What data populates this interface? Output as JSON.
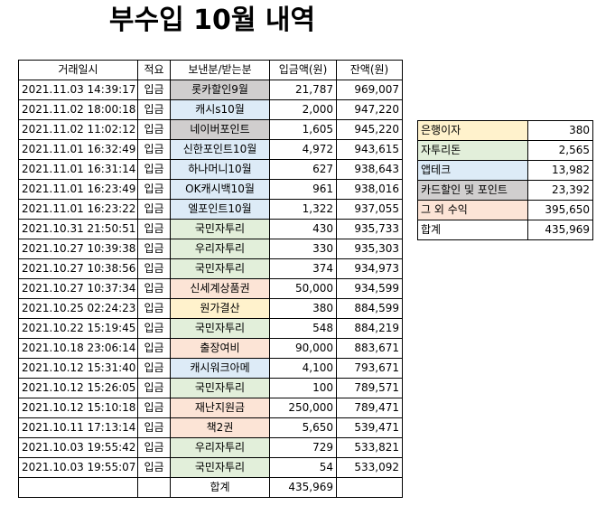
{
  "header": {
    "title": "부수입 10월 내역"
  },
  "table": {
    "columns": [
      "거래일시",
      "적요",
      "보낸분/받는분",
      "입금액(원)",
      "잔액(원)"
    ],
    "rows": [
      {
        "cells": [
          "2021.11.03 14:39:17",
          "입금",
          "롯카할인9월",
          "21,787",
          "969,007"
        ],
        "color": "#d0cece"
      },
      {
        "cells": [
          "2021.11.02 18:00:18",
          "입금",
          "캐시s10월",
          "2,000",
          "947,220"
        ],
        "color": "#ddebf7"
      },
      {
        "cells": [
          "2021.11.02 11:02:12",
          "입금",
          "네이버포인트",
          "1,605",
          "945,220"
        ],
        "color": "#d0cece"
      },
      {
        "cells": [
          "2021.11.01 16:32:49",
          "입금",
          "신한포인트10월",
          "4,972",
          "943,615"
        ],
        "color": "#ddebf7"
      },
      {
        "cells": [
          "2021.11.01 16:31:14",
          "입금",
          "하나머니10월",
          "627",
          "938,643"
        ],
        "color": "#ddebf7"
      },
      {
        "cells": [
          "2021.11.01 16:23:49",
          "입금",
          "OK캐시백10월",
          "961",
          "938,016"
        ],
        "color": "#ddebf7"
      },
      {
        "cells": [
          "2021.11.01 16:23:22",
          "입금",
          "엘포인트10월",
          "1,322",
          "937,055"
        ],
        "color": "#ddebf7"
      },
      {
        "cells": [
          "2021.10.31 21:50:51",
          "입금",
          "국민자투리",
          "430",
          "935,733"
        ],
        "color": "#e2efda"
      },
      {
        "cells": [
          "2021.10.27 10:39:38",
          "입금",
          "우리자투리",
          "330",
          "935,303"
        ],
        "color": "#e2efda"
      },
      {
        "cells": [
          "2021.10.27 10:38:56",
          "입금",
          "국민자투리",
          "374",
          "934,973"
        ],
        "color": "#e2efda"
      },
      {
        "cells": [
          "2021.10.27 10:37:34",
          "입금",
          "신세계상품권",
          "50,000",
          "934,599"
        ],
        "color": "#fce4d6"
      },
      {
        "cells": [
          "2021.10.25 02:24:23",
          "입금",
          "원가결산",
          "380",
          "884,599"
        ],
        "color": "#fff2cc"
      },
      {
        "cells": [
          "2021.10.22 15:19:45",
          "입금",
          "국민자투리",
          "548",
          "884,219"
        ],
        "color": "#e2efda"
      },
      {
        "cells": [
          "2021.10.18 23:06:14",
          "입금",
          "출장여비",
          "90,000",
          "883,671"
        ],
        "color": "#fce4d6"
      },
      {
        "cells": [
          "2021.10.12 15:31:40",
          "입금",
          "캐시워크아메",
          "4,100",
          "793,671"
        ],
        "color": "#ddebf7"
      },
      {
        "cells": [
          "2021.10.12 15:26:05",
          "입금",
          "국민자투리",
          "100",
          "789,571"
        ],
        "color": "#e2efda"
      },
      {
        "cells": [
          "2021.10.12 15:10:18",
          "입금",
          "재난지원금",
          "250,000",
          "789,471"
        ],
        "color": "#fce4d6"
      },
      {
        "cells": [
          "2021.10.11 17:13:14",
          "입금",
          "책2권",
          "5,650",
          "539,471"
        ],
        "color": "#fce4d6"
      },
      {
        "cells": [
          "2021.10.03 19:55:42",
          "입금",
          "우리자투리",
          "729",
          "533,821"
        ],
        "color": "#e2efda"
      },
      {
        "cells": [
          "2021.10.03 19:55:07",
          "입금",
          "국민자투리",
          "54",
          "533,092"
        ],
        "color": "#e2efda"
      }
    ],
    "total": {
      "label": "합계",
      "value": "435,969"
    }
  },
  "summary": {
    "rows": [
      {
        "cells": [
          "은행이자",
          "380"
        ],
        "color": "#fff2cc"
      },
      {
        "cells": [
          "자투리돈",
          "2,565"
        ],
        "color": "#e2efda"
      },
      {
        "cells": [
          "앱테크",
          "13,982"
        ],
        "color": "#ddebf7"
      },
      {
        "cells": [
          "카드할인 및 포인트",
          "23,392"
        ],
        "color": "#d0cece"
      },
      {
        "cells": [
          "그 외 수익",
          "395,650"
        ],
        "color": "#fce4d6"
      },
      {
        "cells": [
          "합계",
          "435,969"
        ],
        "color": "#ffffff"
      }
    ]
  }
}
